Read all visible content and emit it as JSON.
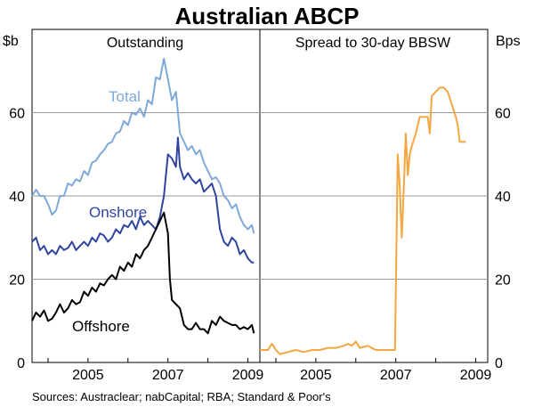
{
  "chart_data": {
    "type": "line",
    "title": "Australian ABCP",
    "source": "Sources: Austraclear; nabCapital; RBA; Standard & Poor's",
    "left_unit": "$b",
    "right_unit": "Bps",
    "grid": true,
    "x_ticks": [
      "2005",
      "2007",
      "2009"
    ],
    "y_ticks": [
      "0",
      "20",
      "40",
      "60"
    ],
    "panels": [
      {
        "title": "Outstanding",
        "ylim": [
          0,
          80
        ],
        "xlim": [
          2003.6,
          2009.3
        ],
        "series": [
          {
            "name": "Total",
            "color": "#7ea9d9",
            "points": [
              [
                2003.6,
                40
              ],
              [
                2003.7,
                41.5
              ],
              [
                2003.8,
                40
              ],
              [
                2003.9,
                40
              ],
              [
                2004.0,
                38
              ],
              [
                2004.1,
                35.5
              ],
              [
                2004.2,
                36.5
              ],
              [
                2004.3,
                40
              ],
              [
                2004.4,
                40
              ],
              [
                2004.5,
                43
              ],
              [
                2004.6,
                42.5
              ],
              [
                2004.7,
                44
              ],
              [
                2004.8,
                43.5
              ],
              [
                2004.9,
                46
              ],
              [
                2005.0,
                45
              ],
              [
                2005.1,
                48
              ],
              [
                2005.2,
                48.5
              ],
              [
                2005.3,
                50
              ],
              [
                2005.4,
                51
              ],
              [
                2005.5,
                52.5
              ],
              [
                2005.6,
                53
              ],
              [
                2005.7,
                55
              ],
              [
                2005.8,
                55.5
              ],
              [
                2005.9,
                58
              ],
              [
                2006.0,
                57
              ],
              [
                2006.1,
                60
              ],
              [
                2006.2,
                59.5
              ],
              [
                2006.3,
                61
              ],
              [
                2006.4,
                59
              ],
              [
                2006.5,
                63
              ],
              [
                2006.6,
                62
              ],
              [
                2006.7,
                68.5
              ],
              [
                2006.8,
                68
              ],
              [
                2006.9,
                73
              ],
              [
                2007.0,
                68
              ],
              [
                2007.1,
                63
              ],
              [
                2007.2,
                65
              ],
              [
                2007.3,
                55
              ],
              [
                2007.4,
                53
              ],
              [
                2007.5,
                51
              ],
              [
                2007.6,
                52
              ],
              [
                2007.7,
                50
              ],
              [
                2007.8,
                51
              ],
              [
                2007.9,
                48
              ],
              [
                2008.0,
                46
              ],
              [
                2008.1,
                44
              ],
              [
                2008.2,
                44.5
              ],
              [
                2008.3,
                43
              ],
              [
                2008.4,
                40
              ],
              [
                2008.5,
                39
              ],
              [
                2008.6,
                37
              ],
              [
                2008.7,
                38
              ],
              [
                2008.8,
                35
              ],
              [
                2008.9,
                33
              ],
              [
                2009.0,
                32
              ],
              [
                2009.1,
                33
              ],
              [
                2009.15,
                31
              ]
            ]
          },
          {
            "name": "Onshore",
            "color": "#2f45a0",
            "points": [
              [
                2003.6,
                29
              ],
              [
                2003.7,
                30
              ],
              [
                2003.8,
                27
              ],
              [
                2003.9,
                28
              ],
              [
                2004.0,
                26
              ],
              [
                2004.1,
                27
              ],
              [
                2004.2,
                26
              ],
              [
                2004.3,
                28
              ],
              [
                2004.4,
                27
              ],
              [
                2004.5,
                27.5
              ],
              [
                2004.6,
                29
              ],
              [
                2004.7,
                27
              ],
              [
                2004.8,
                28
              ],
              [
                2004.9,
                29
              ],
              [
                2005.0,
                28
              ],
              [
                2005.1,
                30
              ],
              [
                2005.2,
                29
              ],
              [
                2005.3,
                31
              ],
              [
                2005.4,
                30.5
              ],
              [
                2005.5,
                29
              ],
              [
                2005.6,
                30
              ],
              [
                2005.7,
                32
              ],
              [
                2005.8,
                31
              ],
              [
                2005.9,
                33
              ],
              [
                2006.0,
                32.5
              ],
              [
                2006.1,
                34
              ],
              [
                2006.2,
                32
              ],
              [
                2006.3,
                35
              ],
              [
                2006.4,
                33
              ],
              [
                2006.5,
                34
              ],
              [
                2006.6,
                33
              ],
              [
                2006.7,
                32
              ],
              [
                2006.8,
                35
              ],
              [
                2006.9,
                40
              ],
              [
                2007.0,
                50
              ],
              [
                2007.1,
                49
              ],
              [
                2007.2,
                47
              ],
              [
                2007.25,
                54
              ],
              [
                2007.3,
                47
              ],
              [
                2007.4,
                44
              ],
              [
                2007.5,
                45.5
              ],
              [
                2007.6,
                44
              ],
              [
                2007.7,
                43
              ],
              [
                2007.8,
                44
              ],
              [
                2007.9,
                41
              ],
              [
                2008.0,
                42
              ],
              [
                2008.1,
                43
              ],
              [
                2008.2,
                40
              ],
              [
                2008.3,
                32
              ],
              [
                2008.4,
                29
              ],
              [
                2008.5,
                28
              ],
              [
                2008.6,
                30
              ],
              [
                2008.7,
                29
              ],
              [
                2008.8,
                26
              ],
              [
                2008.9,
                27
              ],
              [
                2009.0,
                25
              ],
              [
                2009.1,
                24
              ],
              [
                2009.15,
                24
              ]
            ]
          },
          {
            "name": "Offshore",
            "color": "#000000",
            "points": [
              [
                2003.6,
                10
              ],
              [
                2003.7,
                12
              ],
              [
                2003.8,
                11
              ],
              [
                2003.9,
                12.5
              ],
              [
                2004.0,
                10
              ],
              [
                2004.1,
                10.5
              ],
              [
                2004.2,
                12
              ],
              [
                2004.3,
                14
              ],
              [
                2004.4,
                12
              ],
              [
                2004.5,
                13
              ],
              [
                2004.6,
                15
              ],
              [
                2004.7,
                14
              ],
              [
                2004.8,
                14.5
              ],
              [
                2004.9,
                17
              ],
              [
                2005.0,
                16
              ],
              [
                2005.1,
                18
              ],
              [
                2005.2,
                17
              ],
              [
                2005.3,
                19
              ],
              [
                2005.4,
                18.5
              ],
              [
                2005.5,
                20
              ],
              [
                2005.6,
                21
              ],
              [
                2005.7,
                20
              ],
              [
                2005.8,
                23
              ],
              [
                2005.9,
                22
              ],
              [
                2006.0,
                24
              ],
              [
                2006.1,
                23
              ],
              [
                2006.2,
                26
              ],
              [
                2006.3,
                25
              ],
              [
                2006.4,
                27
              ],
              [
                2006.5,
                28
              ],
              [
                2006.6,
                30
              ],
              [
                2006.7,
                32
              ],
              [
                2006.8,
                34
              ],
              [
                2006.9,
                36
              ],
              [
                2007.0,
                31
              ],
              [
                2007.05,
                20
              ],
              [
                2007.1,
                15
              ],
              [
                2007.2,
                14
              ],
              [
                2007.3,
                13
              ],
              [
                2007.4,
                9
              ],
              [
                2007.5,
                8
              ],
              [
                2007.6,
                8
              ],
              [
                2007.7,
                9.5
              ],
              [
                2007.8,
                8
              ],
              [
                2007.9,
                8
              ],
              [
                2008.0,
                7
              ],
              [
                2008.1,
                10
              ],
              [
                2008.2,
                9
              ],
              [
                2008.3,
                11
              ],
              [
                2008.4,
                10
              ],
              [
                2008.5,
                9.5
              ],
              [
                2008.6,
                9
              ],
              [
                2008.7,
                9
              ],
              [
                2008.8,
                8
              ],
              [
                2008.9,
                8.5
              ],
              [
                2009.0,
                8
              ],
              [
                2009.1,
                9
              ],
              [
                2009.15,
                7
              ]
            ]
          }
        ]
      },
      {
        "title": "Spread to 30-day BBSW",
        "ylim": [
          0,
          80
        ],
        "xlim": [
          2003.6,
          2009.3
        ],
        "series": [
          {
            "color": "#f4a640",
            "points": [
              [
                2003.6,
                3
              ],
              [
                2003.8,
                3
              ],
              [
                2003.9,
                4.5
              ],
              [
                2004.0,
                3
              ],
              [
                2004.1,
                2
              ],
              [
                2004.3,
                2.5
              ],
              [
                2004.5,
                3
              ],
              [
                2004.7,
                2.5
              ],
              [
                2004.9,
                3
              ],
              [
                2005.1,
                3
              ],
              [
                2005.3,
                3.5
              ],
              [
                2005.5,
                3.5
              ],
              [
                2005.7,
                4
              ],
              [
                2005.8,
                4.5
              ],
              [
                2005.9,
                4
              ],
              [
                2006.0,
                5
              ],
              [
                2006.1,
                3.5
              ],
              [
                2006.3,
                4
              ],
              [
                2006.5,
                3
              ],
              [
                2006.7,
                3
              ],
              [
                2006.9,
                3
              ],
              [
                2006.98,
                3
              ],
              [
                2007.05,
                50
              ],
              [
                2007.1,
                42
              ],
              [
                2007.15,
                30
              ],
              [
                2007.2,
                42
              ],
              [
                2007.25,
                55
              ],
              [
                2007.3,
                45
              ],
              [
                2007.35,
                50
              ],
              [
                2007.4,
                52
              ],
              [
                2007.5,
                55
              ],
              [
                2007.6,
                59
              ],
              [
                2007.7,
                59
              ],
              [
                2007.8,
                59
              ],
              [
                2007.85,
                55
              ],
              [
                2007.9,
                64
              ],
              [
                2008.0,
                65
              ],
              [
                2008.1,
                66
              ],
              [
                2008.2,
                66
              ],
              [
                2008.3,
                65
              ],
              [
                2008.4,
                62
              ],
              [
                2008.5,
                59
              ],
              [
                2008.55,
                57
              ],
              [
                2008.6,
                53
              ],
              [
                2008.7,
                53
              ],
              [
                2008.75,
                53
              ]
            ]
          }
        ]
      }
    ]
  }
}
